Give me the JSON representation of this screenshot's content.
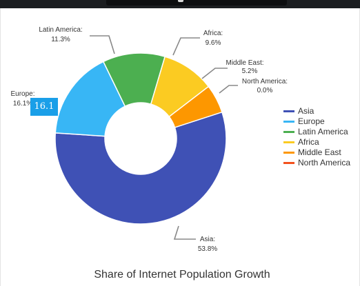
{
  "chart_data": {
    "type": "pie",
    "donut": true,
    "title": "Share of Internet Population Growth",
    "slices": [
      {
        "name": "Asia",
        "value": 53.8,
        "label": "53.8%",
        "color": "#3f51b5"
      },
      {
        "name": "Europe",
        "value": 16.1,
        "label": "16.1%",
        "color": "#38b6f5"
      },
      {
        "name": "Latin America",
        "value": 11.3,
        "label": "11.3%",
        "color": "#4caf50"
      },
      {
        "name": "Africa",
        "value": 9.6,
        "label": "9.6%",
        "color": "#fbcb22"
      },
      {
        "name": "Middle East",
        "value": 5.2,
        "label": "5.2%",
        "color": "#fd9700"
      },
      {
        "name": "North America",
        "value": 0.0,
        "label": "0.0%",
        "color": "#f3511e"
      }
    ],
    "legend_position": "right",
    "tooltip": {
      "text": "16.1",
      "slice": "Europe"
    }
  }
}
